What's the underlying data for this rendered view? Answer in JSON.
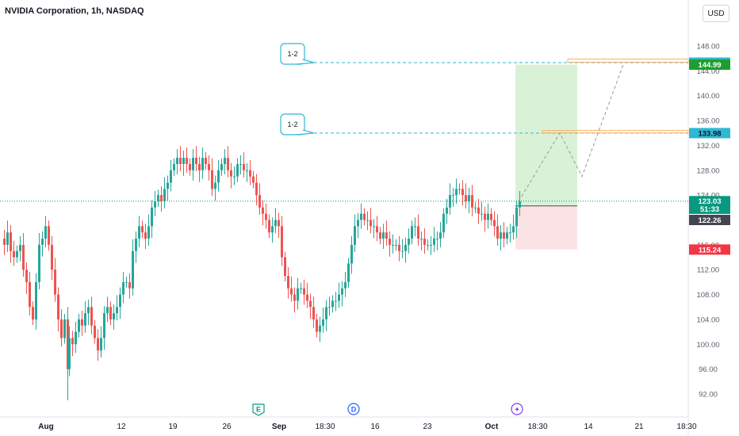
{
  "header": {
    "title": "NVIDIA Corporation, 1h, NASDAQ",
    "currency": "USD"
  },
  "chart_data": {
    "type": "candlestick",
    "symbol": "NVDA",
    "interval": "1h",
    "exchange": "NASDAQ",
    "ylim": [
      88,
      152
    ],
    "y_ticks": [
      "92.00",
      "96.00",
      "100.00",
      "104.00",
      "108.00",
      "112.00",
      "116.00",
      "120.00",
      "124.00",
      "128.00",
      "132.00",
      "136.00",
      "140.00",
      "144.00",
      "148.00"
    ],
    "x_ticks": [
      "Aug",
      "12",
      "19",
      "26",
      "Sep",
      "18:30",
      "16",
      "23",
      "Oct",
      "18:30",
      "14",
      "21",
      "18:30"
    ],
    "price_points": [
      [
        0,
        117
      ],
      [
        4,
        116
      ],
      [
        8,
        118
      ],
      [
        12,
        115
      ],
      [
        16,
        114
      ],
      [
        20,
        115
      ],
      [
        24,
        116
      ],
      [
        28,
        112
      ],
      [
        32,
        110
      ],
      [
        36,
        106
      ],
      [
        40,
        104
      ],
      [
        44,
        110
      ],
      [
        48,
        116
      ],
      [
        52,
        117
      ],
      [
        56,
        119
      ],
      [
        60,
        116
      ],
      [
        64,
        112
      ],
      [
        68,
        108
      ],
      [
        72,
        104
      ],
      [
        76,
        101
      ],
      [
        80,
        104
      ],
      [
        84,
        96
      ],
      [
        86,
        101
      ],
      [
        90,
        100
      ],
      [
        94,
        102
      ],
      [
        98,
        104
      ],
      [
        102,
        103
      ],
      [
        106,
        105
      ],
      [
        110,
        106
      ],
      [
        114,
        103
      ],
      [
        118,
        101
      ],
      [
        122,
        99
      ],
      [
        126,
        101
      ],
      [
        130,
        105
      ],
      [
        134,
        106
      ],
      [
        138,
        104
      ],
      [
        142,
        105
      ],
      [
        146,
        106
      ],
      [
        150,
        108
      ],
      [
        154,
        110
      ],
      [
        158,
        110
      ],
      [
        162,
        109
      ],
      [
        166,
        115
      ],
      [
        170,
        117
      ],
      [
        174,
        119
      ],
      [
        178,
        118
      ],
      [
        182,
        117
      ],
      [
        186,
        119
      ],
      [
        190,
        122
      ],
      [
        194,
        123
      ],
      [
        198,
        124
      ],
      [
        202,
        123
      ],
      [
        206,
        125
      ],
      [
        210,
        126
      ],
      [
        214,
        128
      ],
      [
        218,
        129
      ],
      [
        222,
        130
      ],
      [
        226,
        129
      ],
      [
        230,
        130
      ],
      [
        234,
        129
      ],
      [
        238,
        128
      ],
      [
        242,
        130
      ],
      [
        246,
        129
      ],
      [
        250,
        128
      ],
      [
        254,
        130
      ],
      [
        258,
        129
      ],
      [
        262,
        128
      ],
      [
        266,
        125
      ],
      [
        270,
        126
      ],
      [
        274,
        128
      ],
      [
        278,
        129
      ],
      [
        282,
        130
      ],
      [
        286,
        128
      ],
      [
        290,
        127
      ],
      [
        294,
        127
      ],
      [
        298,
        129
      ],
      [
        302,
        129
      ],
      [
        306,
        128
      ],
      [
        310,
        128
      ],
      [
        314,
        127
      ],
      [
        318,
        126
      ],
      [
        322,
        124
      ],
      [
        326,
        122
      ],
      [
        330,
        121
      ],
      [
        334,
        120
      ],
      [
        338,
        118
      ],
      [
        342,
        119
      ],
      [
        346,
        120
      ],
      [
        350,
        119
      ],
      [
        354,
        114
      ],
      [
        358,
        111
      ],
      [
        362,
        109
      ],
      [
        366,
        108
      ],
      [
        370,
        107
      ],
      [
        374,
        109
      ],
      [
        378,
        109
      ],
      [
        382,
        108
      ],
      [
        386,
        107
      ],
      [
        390,
        106
      ],
      [
        394,
        104
      ],
      [
        398,
        102
      ],
      [
        402,
        103
      ],
      [
        406,
        104
      ],
      [
        410,
        106
      ],
      [
        414,
        106
      ],
      [
        418,
        107
      ],
      [
        422,
        107
      ],
      [
        426,
        108
      ],
      [
        430,
        109
      ],
      [
        434,
        110
      ],
      [
        438,
        113
      ],
      [
        442,
        116
      ],
      [
        446,
        119
      ],
      [
        450,
        120
      ],
      [
        454,
        121
      ],
      [
        458,
        120
      ],
      [
        462,
        120
      ],
      [
        466,
        119
      ],
      [
        470,
        119
      ],
      [
        474,
        118
      ],
      [
        478,
        117
      ],
      [
        482,
        118
      ],
      [
        486,
        117
      ],
      [
        490,
        116
      ],
      [
        494,
        116
      ],
      [
        498,
        116
      ],
      [
        502,
        115
      ],
      [
        506,
        115
      ],
      [
        510,
        116
      ],
      [
        514,
        117
      ],
      [
        518,
        119
      ],
      [
        522,
        119
      ],
      [
        526,
        117
      ],
      [
        530,
        117
      ],
      [
        534,
        116
      ],
      [
        538,
        116
      ],
      [
        542,
        116
      ],
      [
        546,
        117
      ],
      [
        550,
        117
      ],
      [
        554,
        118
      ],
      [
        558,
        121
      ],
      [
        562,
        122
      ],
      [
        566,
        124
      ],
      [
        570,
        124
      ],
      [
        574,
        125
      ],
      [
        578,
        125
      ],
      [
        582,
        124
      ],
      [
        586,
        123
      ],
      [
        590,
        124
      ],
      [
        594,
        122
      ],
      [
        598,
        122
      ],
      [
        602,
        121
      ],
      [
        606,
        121
      ],
      [
        610,
        120
      ],
      [
        614,
        121
      ],
      [
        618,
        120
      ],
      [
        622,
        119
      ],
      [
        626,
        117
      ],
      [
        630,
        118
      ],
      [
        634,
        117
      ],
      [
        638,
        118
      ],
      [
        642,
        118
      ],
      [
        646,
        119
      ],
      [
        650,
        122
      ],
      [
        654,
        123
      ]
    ],
    "position": {
      "entry": 122.26,
      "stop": 115.24,
      "target": 144.99
    },
    "projection": [
      [
        654,
        123
      ],
      [
        706,
        134
      ],
      [
        734,
        127
      ],
      [
        786,
        145
      ]
    ],
    "levels": [
      {
        "label": "1-2",
        "price": 145.32
      },
      {
        "label": "1-2",
        "price": 133.98
      }
    ],
    "current_price": 123.03,
    "last_price_line": 123.03,
    "price_labels": [
      {
        "text": "145.32",
        "price": 145.32,
        "color": "#2fb7d3",
        "text_color": "#131722"
      },
      {
        "text": "144.99",
        "price": 144.99,
        "color": "#1e9e2e",
        "text_color": "#ffffff"
      },
      {
        "text": "133.98",
        "price": 133.98,
        "color": "#2fb7d3",
        "text_color": "#131722"
      },
      {
        "text": "123.03",
        "price": 123.03,
        "color": "#089981",
        "text_color": "#ffffff"
      },
      {
        "text": "51:33",
        "price": 121.8,
        "color": "#089981",
        "text_color": "#ffffff"
      },
      {
        "text": "122.26",
        "price": 120.0,
        "color": "#434651",
        "text_color": "#ffffff"
      },
      {
        "text": "115.24",
        "price": 115.24,
        "color": "#f23645",
        "text_color": "#ffffff"
      }
    ],
    "events": [
      {
        "label": "E",
        "index": 326,
        "color": "#089981"
      },
      {
        "label": "D",
        "index": 446,
        "color": "#2962ff"
      },
      {
        "label": "✦",
        "index": 652,
        "color": "#7b3ff2"
      }
    ],
    "colors": {
      "up": "#26a69a",
      "down": "#ef5350",
      "profit_zone": "#d9f2d7",
      "loss_zone": "#fbe3e5",
      "level_line": "#2fb7d3",
      "dotted_price": "#089981",
      "grid": "#f0f3fa"
    },
    "grid": false
  }
}
